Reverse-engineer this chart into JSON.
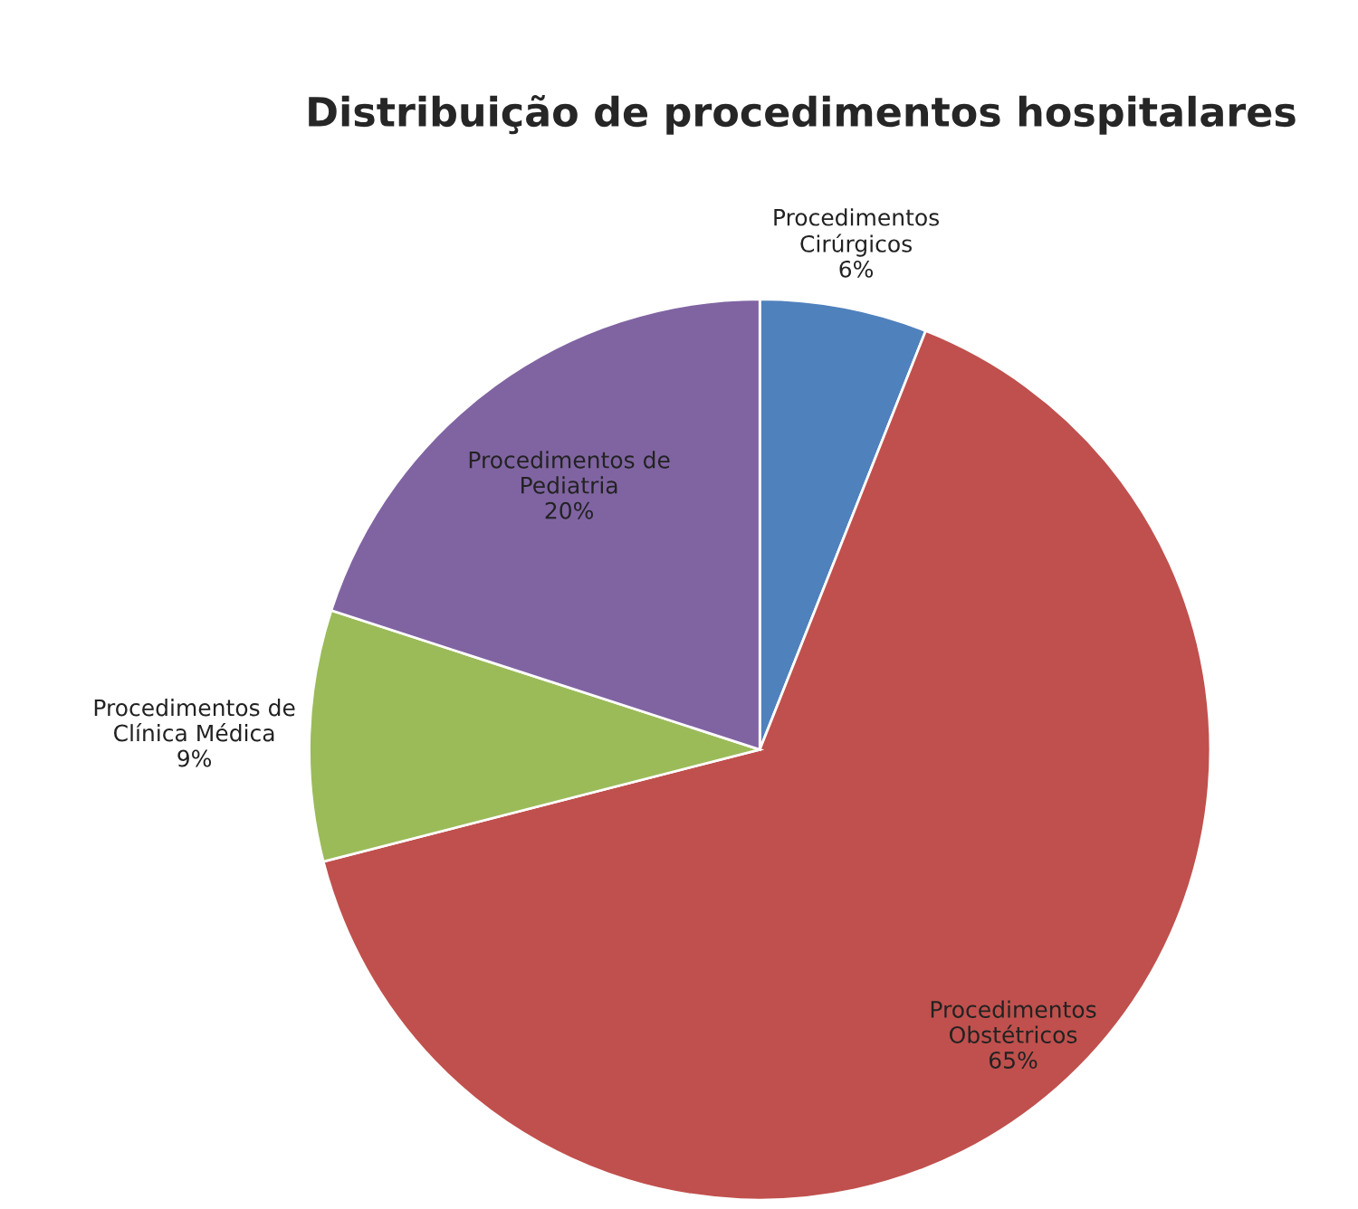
{
  "chart_data": {
    "type": "pie",
    "title": "Distribuição de procedimentos hospitalares",
    "categories": [
      "Procedimentos\nCirúrgicos",
      "Procedimentos\nObstétricos",
      "Procedimentos de\nClínica Médica",
      "Procedimentos de\nPediatria"
    ],
    "values": [
      6,
      65,
      9,
      20
    ],
    "colors": [
      "#4f81bd",
      "#c0504d",
      "#9bbb59",
      "#8064a2"
    ],
    "value_labels": [
      "6%",
      "65%",
      "9%",
      "20%"
    ],
    "legend": false
  }
}
